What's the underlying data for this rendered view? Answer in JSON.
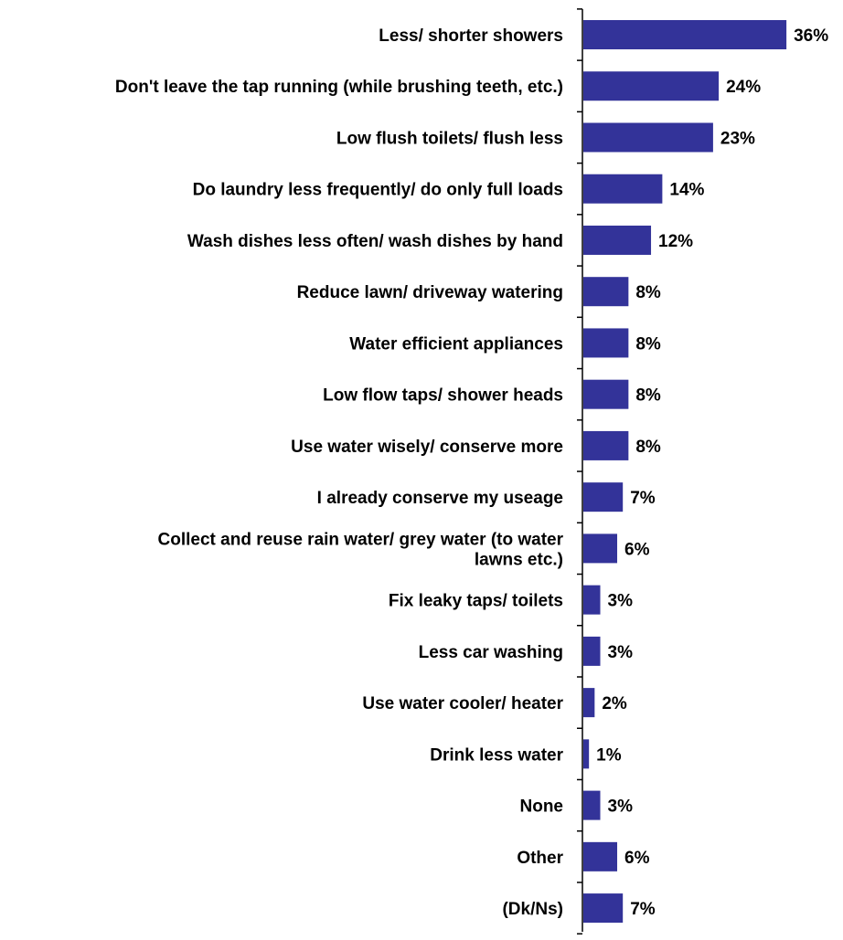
{
  "colors": {
    "bar": "#333399",
    "axis": "#000000",
    "text": "#000000",
    "background": "#ffffff"
  },
  "chart_data": {
    "type": "bar",
    "orientation": "horizontal",
    "title": "",
    "xlabel": "",
    "ylabel": "",
    "grid": false,
    "legend": "none",
    "value_suffix": "%",
    "xlim": [
      0,
      40
    ],
    "categories": [
      [
        "Less/ shorter showers"
      ],
      [
        "Don't leave the tap running (while brushing teeth, etc.)"
      ],
      [
        "Low flush toilets/ flush less"
      ],
      [
        "Do laundry less frequently/ do only full loads"
      ],
      [
        "Wash dishes less often/ wash dishes by hand"
      ],
      [
        "Reduce lawn/ driveway watering"
      ],
      [
        "Water efficient appliances"
      ],
      [
        "Low flow taps/ shower heads"
      ],
      [
        "Use water wisely/ conserve more"
      ],
      [
        "I already conserve my useage"
      ],
      [
        "Collect and reuse rain water/ grey water (to water",
        "lawns etc.)"
      ],
      [
        "Fix leaky taps/ toilets"
      ],
      [
        "Less car washing"
      ],
      [
        "Use water cooler/ heater"
      ],
      [
        "Drink less water"
      ],
      [
        "None"
      ],
      [
        "Other"
      ],
      [
        "(Dk/Ns)"
      ]
    ],
    "values": [
      36,
      24,
      23,
      14,
      12,
      8,
      8,
      8,
      8,
      7,
      6,
      3,
      3,
      2,
      1,
      3,
      6,
      7
    ],
    "data_labels": [
      "36%",
      "24%",
      "23%",
      "14%",
      "12%",
      "8%",
      "8%",
      "8%",
      "8%",
      "7%",
      "6%",
      "3%",
      "3%",
      "2%",
      "1%",
      "3%",
      "6%",
      "7%"
    ]
  }
}
